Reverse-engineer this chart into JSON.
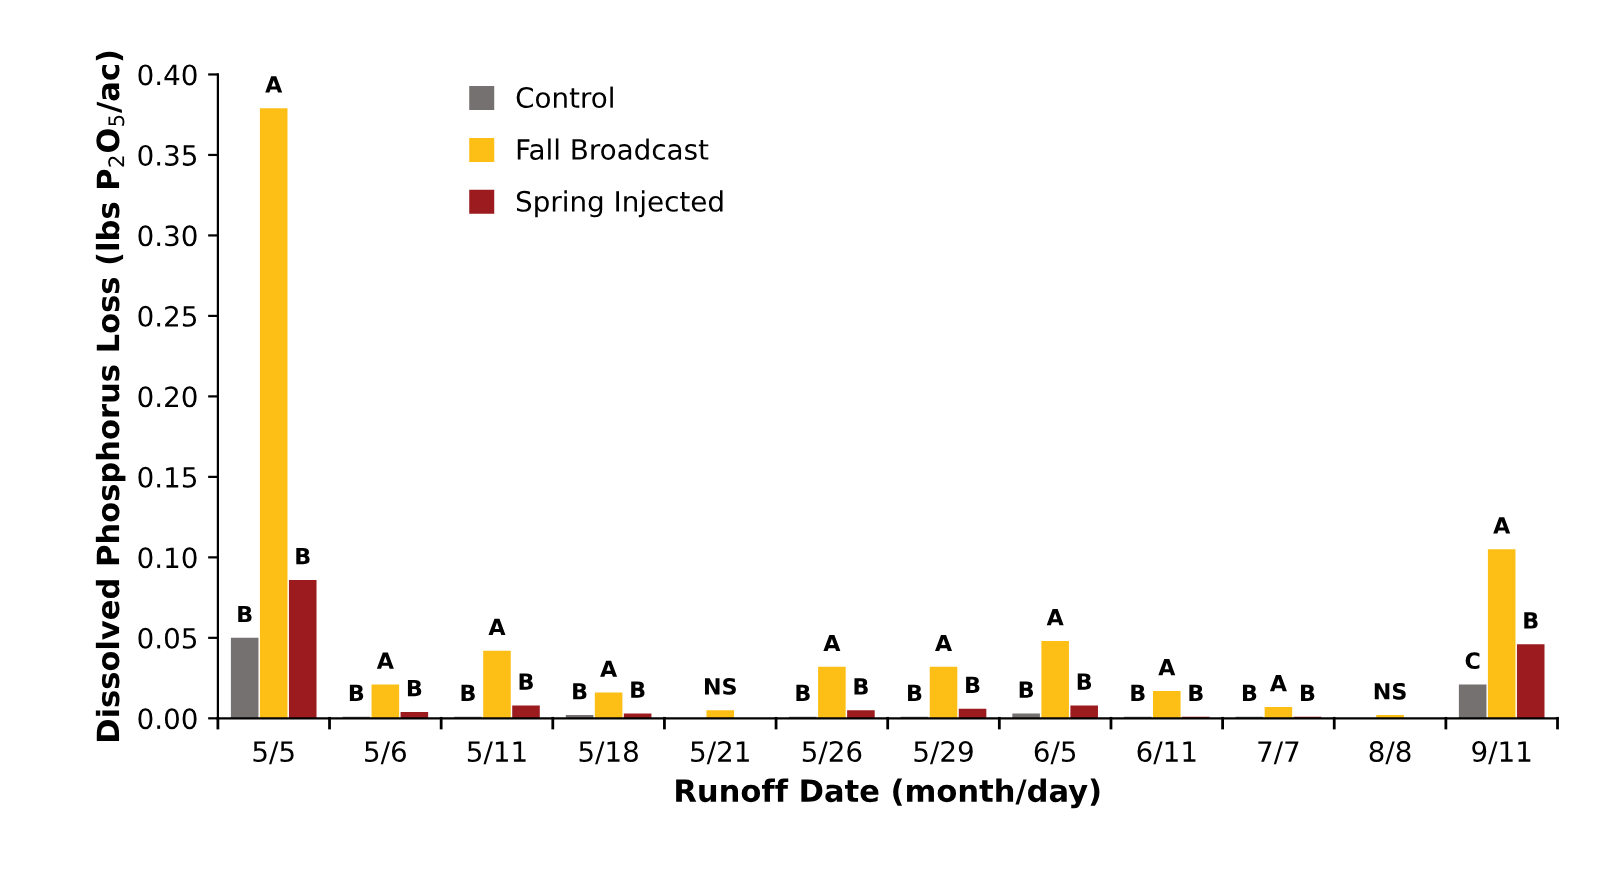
{
  "chart_data": {
    "type": "bar",
    "xlabel": "Runoff Date (month/day)",
    "ylabel": "Dissolved Phosphorus Loss (lbs P$_{2}$O$_{5}$/ac)",
    "categories": [
      "5/5",
      "5/6",
      "5/11",
      "5/18",
      "5/21",
      "5/26",
      "5/29",
      "6/5",
      "6/11",
      "7/7",
      "8/8",
      "9/11"
    ],
    "series": [
      {
        "name": "Control",
        "color": "#767171",
        "values": [
          0.05,
          0.001,
          0.001,
          0.002,
          0,
          0.001,
          0.001,
          0.003,
          0.001,
          0.001,
          0,
          0.021
        ],
        "value_labels": [
          "B",
          "B",
          "B",
          "B",
          null,
          "B",
          "B",
          "B",
          "B",
          "B",
          null,
          "C"
        ]
      },
      {
        "name": "Fall Broadcast",
        "color": "#fdbf15",
        "values": [
          0.379,
          0.021,
          0.042,
          0.016,
          0.005,
          0.032,
          0.032,
          0.048,
          0.017,
          0.007,
          0.002,
          0.105
        ],
        "value_labels": [
          "A",
          "A",
          "A",
          "A",
          "NS",
          "A",
          "A",
          "A",
          "A",
          "A",
          "NS",
          "A"
        ]
      },
      {
        "name": "Spring Injected",
        "color": "#9b1b1f",
        "values": [
          0.086,
          0.004,
          0.008,
          0.003,
          0,
          0.005,
          0.006,
          0.008,
          0.001,
          0.001,
          0,
          0.046
        ],
        "value_labels": [
          "B",
          "B",
          "B",
          "B",
          null,
          "B",
          "B",
          "B",
          "B",
          "B",
          null,
          "B"
        ]
      }
    ],
    "ylim": [
      0,
      0.4
    ],
    "yticks": [
      {
        "value": 0,
        "label": "0.00"
      },
      {
        "value": 0.05,
        "label": "0.05"
      },
      {
        "value": 0.1,
        "label": "0.10"
      },
      {
        "value": 0.15,
        "label": "0.15"
      },
      {
        "value": 0.2,
        "label": "0.20"
      },
      {
        "value": 0.25,
        "label": "0.25"
      },
      {
        "value": 0.3,
        "label": "0.30"
      },
      {
        "value": 0.35,
        "label": "0.35"
      },
      {
        "value": 0.4,
        "label": "0.40"
      }
    ],
    "legend": "top left"
  }
}
